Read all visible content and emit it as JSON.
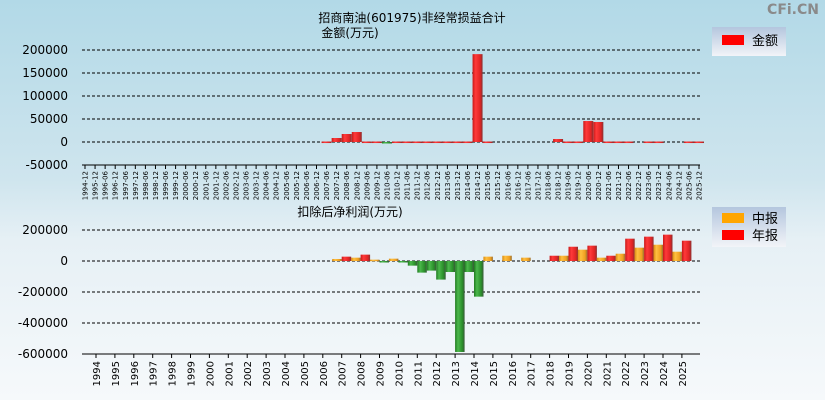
{
  "watermark": "CFi.CN",
  "chart_data": [
    {
      "type": "bar",
      "title": "招商南油(601975)非经常损益合计",
      "ylabel": "金额(万元)",
      "ylim": [
        -50000,
        200000
      ],
      "yticks": [
        200000,
        150000,
        100000,
        50000,
        0,
        -50000
      ],
      "grid": true,
      "legend": {
        "position": "top-right",
        "entries": [
          "金额"
        ]
      },
      "colors": {
        "positive": "#ff2020",
        "negative": "#2a9a2a"
      },
      "categories": [
        "1994-12",
        "1995-12",
        "1996-06",
        "1996-12",
        "1997-06",
        "1997-12",
        "1998-06",
        "1998-12",
        "1999-06",
        "1999-12",
        "2000-06",
        "2000-12",
        "2001-06",
        "2001-12",
        "2002-06",
        "2002-12",
        "2003-06",
        "2003-12",
        "2004-06",
        "2004-12",
        "2005-06",
        "2005-12",
        "2006-06",
        "2006-12",
        "2007-06",
        "2007-12",
        "2008-06",
        "2008-12",
        "2009-06",
        "2009-12",
        "2010-06",
        "2010-12",
        "2011-06",
        "2011-12",
        "2012-06",
        "2012-12",
        "2013-06",
        "2013-12",
        "2014-06",
        "2014-12",
        "2015-06",
        "2015-12",
        "2016-06",
        "2016-12",
        "2017-06",
        "2017-12",
        "2018-06",
        "2018-12",
        "2019-06",
        "2019-12",
        "2020-06",
        "2020-12",
        "2021-06",
        "2021-12",
        "2022-06",
        "2022-12",
        "2023-06",
        "2023-12",
        "2024-06",
        "2024-12",
        "2025-06",
        "2025-12"
      ],
      "values": [
        null,
        null,
        null,
        null,
        null,
        null,
        null,
        null,
        null,
        null,
        null,
        null,
        null,
        null,
        null,
        null,
        null,
        null,
        null,
        null,
        null,
        null,
        null,
        null,
        1000,
        8700,
        17400,
        21700,
        1000,
        1000,
        -2000,
        1000,
        1000,
        1000,
        1000,
        1000,
        1000,
        1000,
        1000,
        191000,
        1000,
        null,
        null,
        null,
        null,
        null,
        null,
        6500,
        1000,
        1000,
        45600,
        43500,
        1000,
        1000,
        1000,
        null,
        1000,
        1000,
        null,
        null,
        1000,
        1000
      ]
    },
    {
      "type": "bar",
      "title": "扣除后净利润(万元)",
      "ylim": [
        -600000,
        200000
      ],
      "yticks": [
        200000,
        0,
        -200000,
        -400000,
        -600000
      ],
      "grid": true,
      "legend": {
        "position": "right",
        "entries": [
          "中报",
          "年报"
        ]
      },
      "colors": {
        "mid": "#ffa500",
        "annual": "#ff2020",
        "negative": "#2a9a2a"
      },
      "categories": [
        "1994",
        "1995",
        "1996",
        "1997",
        "1998",
        "1999",
        "2000",
        "2001",
        "2002",
        "2003",
        "2004",
        "2005",
        "2006",
        "2007",
        "2008",
        "2009",
        "2010",
        "2011",
        "2012",
        "2013",
        "2014",
        "2015",
        "2016",
        "2017",
        "2018",
        "2019",
        "2020",
        "2021",
        "2022",
        "2023",
        "2024",
        "2025"
      ],
      "series": [
        {
          "name": "中报",
          "values": [
            null,
            null,
            null,
            null,
            null,
            null,
            null,
            null,
            null,
            null,
            null,
            null,
            null,
            13000,
            21500,
            8600,
            15000,
            -30000,
            -62000,
            -71000,
            -71000,
            28000,
            34000,
            21500,
            null,
            34000,
            73000,
            21500,
            47000,
            86000,
            105000,
            60000
          ]
        },
        {
          "name": "年报",
          "values": [
            null,
            null,
            null,
            null,
            null,
            null,
            null,
            null,
            null,
            null,
            null,
            null,
            null,
            28000,
            41000,
            -6000,
            -2000,
            -75000,
            -120000,
            -587000,
            -230000,
            null,
            null,
            null,
            34000,
            92000,
            99000,
            34000,
            144000,
            157000,
            170000,
            131000
          ]
        }
      ]
    }
  ]
}
